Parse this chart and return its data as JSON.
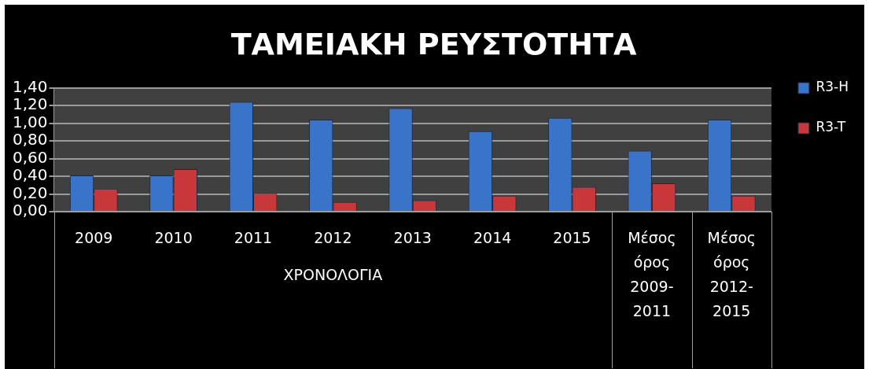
{
  "chart_data": {
    "type": "bar",
    "title": "ΤΑΜΕΙΑΚΗ ΡΕΥΣΤΟΤΗΤΑ",
    "xlabel": "ΧΡΟΝΟΛΟΓΙΑ",
    "categories": [
      "2009",
      "2010",
      "2011",
      "2012",
      "2013",
      "2014",
      "2015",
      "Μέσος όρος 2009-2011",
      "Μέσος όρος 2012-2015"
    ],
    "series": [
      {
        "name": "R3-H",
        "color": "#3a74c9",
        "values": [
          0.41,
          0.41,
          1.24,
          1.04,
          1.17,
          0.91,
          1.06,
          0.69,
          1.04
        ]
      },
      {
        "name": "R3-T",
        "color": "#c8383a",
        "values": [
          0.26,
          0.48,
          0.21,
          0.11,
          0.13,
          0.18,
          0.28,
          0.32,
          0.18
        ]
      }
    ],
    "ylim": [
      0,
      1.4
    ],
    "yticks": [
      {
        "value": 0,
        "label": "0,00"
      },
      {
        "value": 0.2,
        "label": "0,20"
      },
      {
        "value": 0.4,
        "label": "0,40"
      },
      {
        "value": 0.6,
        "label": "0,60"
      },
      {
        "value": 0.8,
        "label": "0,80"
      },
      {
        "value": 1.0,
        "label": "1,00"
      },
      {
        "value": 1.2,
        "label": "1,20"
      },
      {
        "value": 1.4,
        "label": "1,40"
      }
    ],
    "grid": "y",
    "legend": "right"
  }
}
